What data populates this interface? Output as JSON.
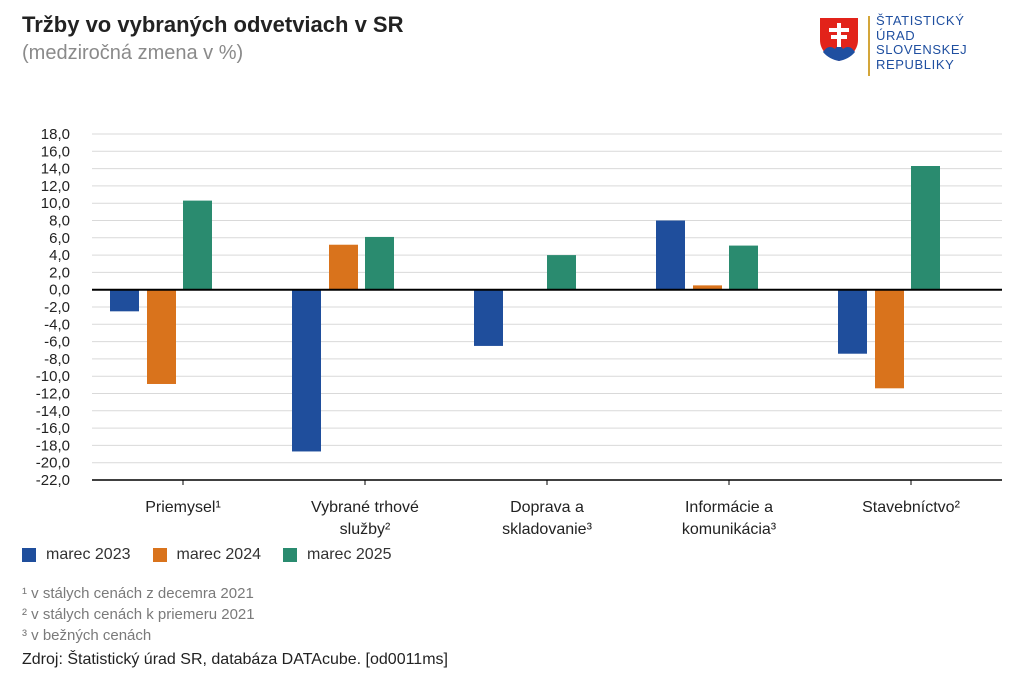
{
  "header": {
    "title": "Tržby vo vybraných odvetviach v SR",
    "subtitle": "(medziročná zmena v %)"
  },
  "logo": {
    "lines": [
      "ŠTATISTICKÝ",
      "ÚRAD",
      "SLOVENSKEJ",
      "REPUBLIKY"
    ],
    "emblem_icon": "slovak-coat-of-arms-icon"
  },
  "colors": {
    "marec 2023": "#1f4e9c",
    "marec 2024": "#d9731c",
    "marec 2025": "#2a8b6f",
    "gridline": "#d9d9d9",
    "axis": "#000000"
  },
  "chart_data": {
    "type": "bar",
    "title": "Tržby vo vybraných odvetviach v SR",
    "subtitle": "(medziročná zmena v %)",
    "xlabel": "",
    "ylabel": "",
    "ylim": [
      -22,
      18
    ],
    "ytick_step": 2,
    "ytick_labels": [
      "18,0",
      "16,0",
      "14,0",
      "12,0",
      "10,0",
      "8,0",
      "6,0",
      "4,0",
      "2,0",
      "0,0",
      "-2,0",
      "-4,0",
      "-6,0",
      "-8,0",
      "-10,0",
      "-12,0",
      "-14,0",
      "-16,0",
      "-18,0",
      "-20,0",
      "-22,0"
    ],
    "grid": true,
    "legend_position": "bottom-left",
    "categories": [
      [
        "Priemysel¹"
      ],
      [
        "Vybrané trhové",
        "služby²"
      ],
      [
        "Doprava a",
        "skladovanie³"
      ],
      [
        "Informácie a",
        "komunikácia³"
      ],
      [
        "Stavebníctvo²"
      ]
    ],
    "series": [
      {
        "name": "marec 2023",
        "values": [
          -2.5,
          -18.7,
          -6.5,
          8.0,
          -7.4
        ]
      },
      {
        "name": "marec 2024",
        "values": [
          -10.9,
          5.2,
          0.0,
          0.5,
          -11.4
        ]
      },
      {
        "name": "marec 2025",
        "values": [
          10.3,
          6.1,
          4.0,
          5.1,
          14.3
        ]
      }
    ]
  },
  "legend": {
    "items": [
      "marec 2023",
      "marec 2024",
      "marec 2025"
    ]
  },
  "footnotes": [
    "¹ v stálych cenách z decemra 2021",
    "² v stálych cenách k priemeru 2021",
    "³ v bežných cenách"
  ],
  "source": "Zdroj: Štatistický úrad SR, databáza DATAcube. [od0011ms]"
}
